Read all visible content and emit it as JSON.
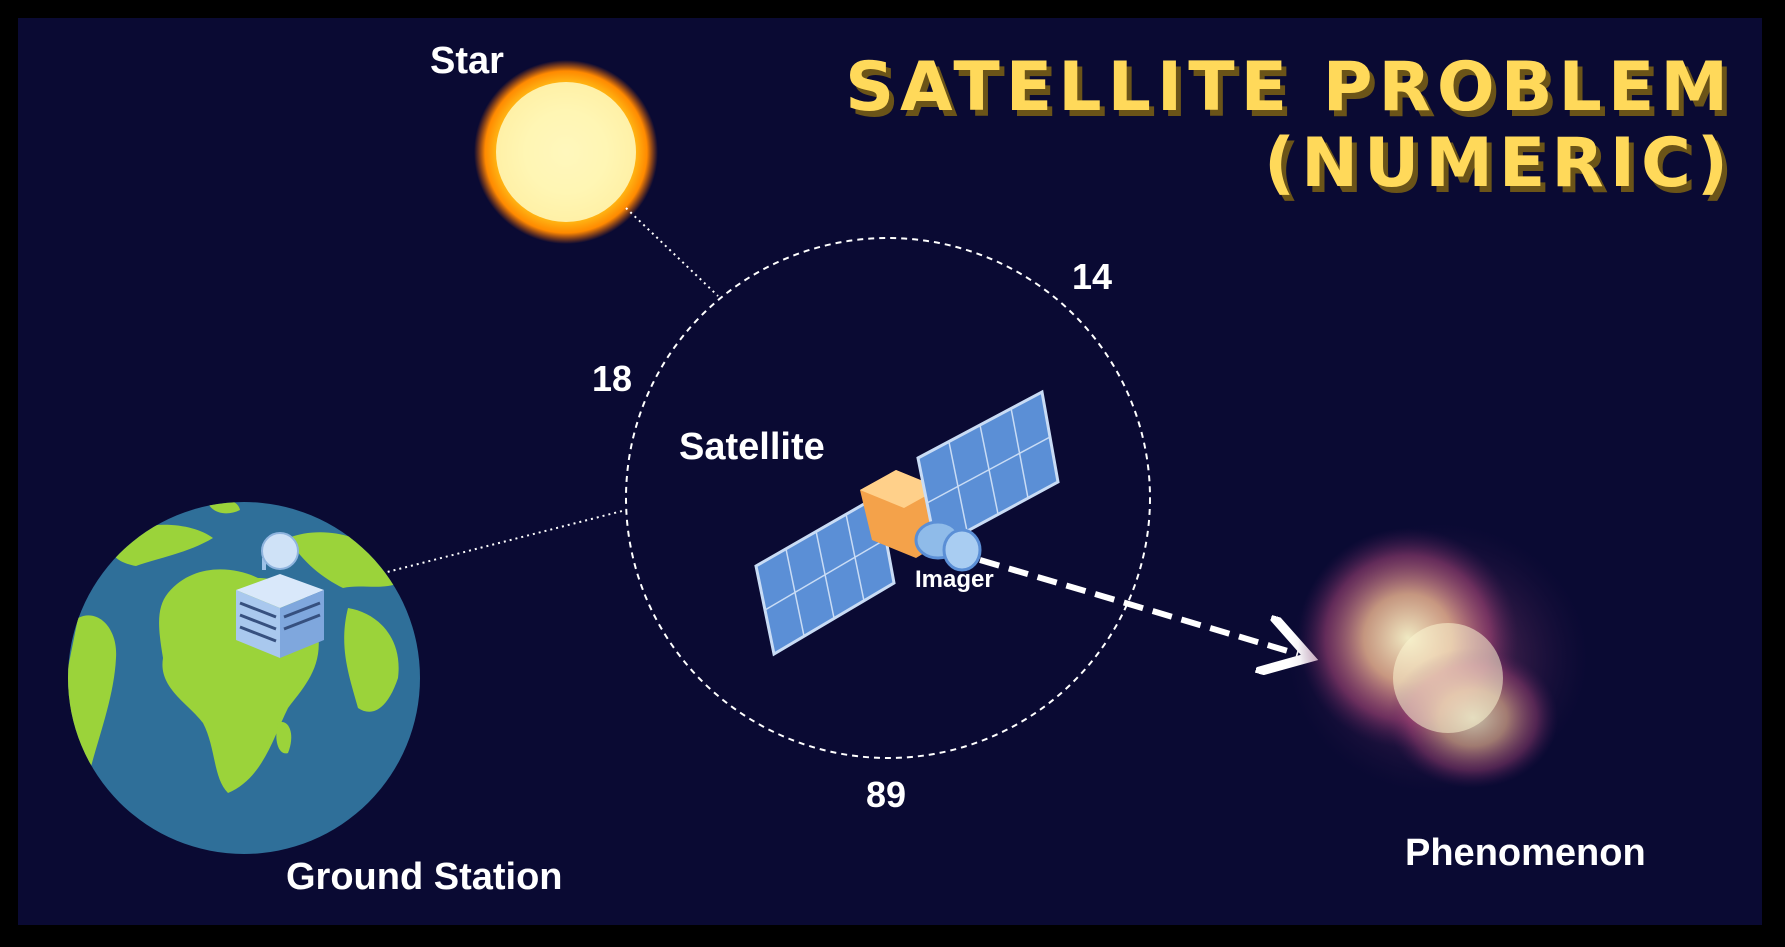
{
  "title": {
    "line1": "SATELLITE PROBLEM",
    "line2": "(NUMERIC)"
  },
  "labels": {
    "star": "Star",
    "satellite": "Satellite",
    "imager": "Imager",
    "ground_station": "Ground Station",
    "phenomenon": "Phenomenon"
  },
  "values": {
    "top_right": "14",
    "left": "18",
    "bottom": "89"
  },
  "colors": {
    "background": "#0a0a33",
    "title": "#ffd95a",
    "ocean": "#2f6f99",
    "land": "#9bd33a",
    "panel_blue": "#5b8fd6",
    "bus_orange": "#f4a24a"
  }
}
